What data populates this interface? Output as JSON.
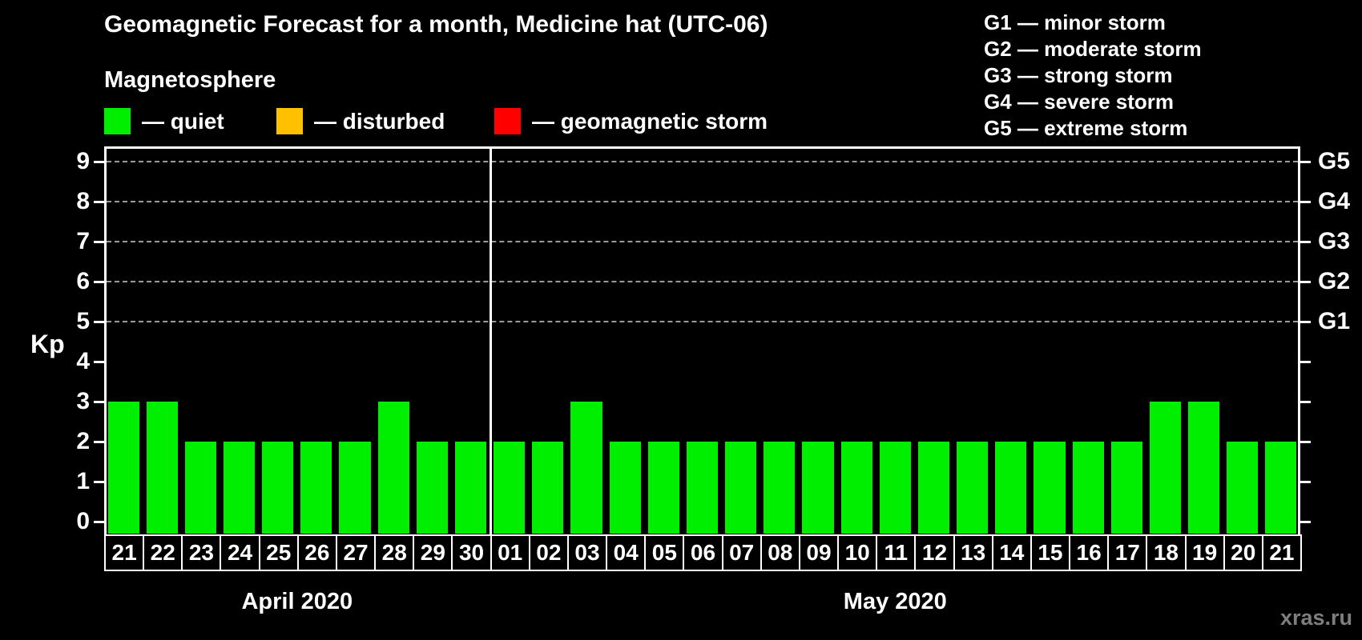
{
  "title": "Geomagnetic Forecast for a month, Medicine hat (UTC-06)",
  "magnetosphere": {
    "heading": "Magnetosphere",
    "items": [
      {
        "name": "quiet",
        "color": "#00ee00",
        "label": "— quiet"
      },
      {
        "name": "disturbed",
        "color": "#ffc000",
        "label": "— disturbed"
      },
      {
        "name": "storm",
        "color": "#ff0000",
        "label": "— geomagnetic storm"
      }
    ]
  },
  "g_legend": {
    "lines": [
      "G1 — minor storm",
      "G2 — moderate storm",
      "G3 — strong storm",
      "G4 — severe storm",
      "G5 — extreme storm"
    ]
  },
  "watermark": "xras.ru",
  "chart_data": {
    "type": "bar",
    "title": "Geomagnetic Forecast for a month, Medicine hat (UTC-06)",
    "ylabel": "Kp",
    "ylim": [
      0,
      9.7
    ],
    "yticks": [
      0,
      1,
      2,
      3,
      4,
      5,
      6,
      7,
      8,
      9
    ],
    "grid": "horizontal dashed lines at Kp 5-9 only",
    "legend_position": "top-left and top-right",
    "right_axis_labels": [
      {
        "kp": 5,
        "label": "G1"
      },
      {
        "kp": 6,
        "label": "G2"
      },
      {
        "kp": 7,
        "label": "G3"
      },
      {
        "kp": 8,
        "label": "G4"
      },
      {
        "kp": 9,
        "label": "G5"
      }
    ],
    "bar_color": "#00ee00",
    "bar_status": "quiet",
    "months": [
      {
        "label": "April 2020",
        "days": [
          "21",
          "22",
          "23",
          "24",
          "25",
          "26",
          "27",
          "28",
          "29",
          "30"
        ],
        "values": [
          3,
          3,
          2,
          2,
          2,
          2,
          2,
          3,
          2,
          2
        ]
      },
      {
        "label": "May 2020",
        "days": [
          "01",
          "02",
          "03",
          "04",
          "05",
          "06",
          "07",
          "08",
          "09",
          "10",
          "11",
          "12",
          "13",
          "14",
          "15",
          "16",
          "17",
          "18",
          "19",
          "20",
          "21"
        ],
        "values": [
          2,
          2,
          3,
          2,
          2,
          2,
          2,
          2,
          2,
          2,
          2,
          2,
          2,
          2,
          2,
          2,
          2,
          3,
          3,
          2,
          2
        ]
      }
    ]
  }
}
